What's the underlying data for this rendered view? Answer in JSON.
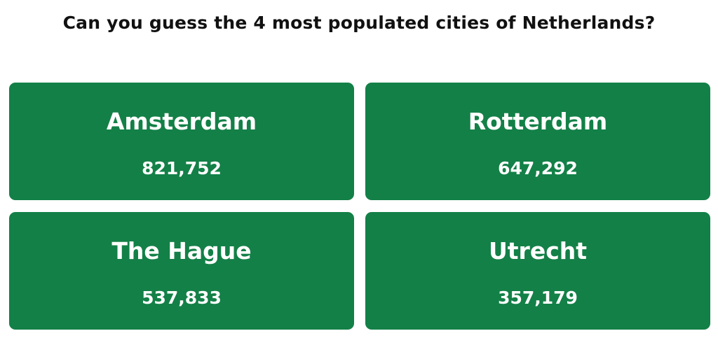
{
  "title": "Can you guess the 4 most populated cities of Netherlands?",
  "cards": [
    {
      "name": "Amsterdam",
      "population": "821,752"
    },
    {
      "name": "Rotterdam",
      "population": "647,292"
    },
    {
      "name": "The Hague",
      "population": "537,833"
    },
    {
      "name": "Utrecht",
      "population": "357,179"
    }
  ]
}
